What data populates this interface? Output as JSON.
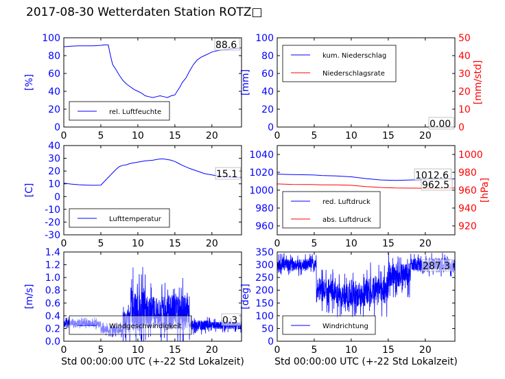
{
  "title": "2017-08-30 Wetterdaten Station ROTZ□",
  "colors": {
    "primary": "#0000ff",
    "secondary": "#ff0000",
    "axis": "#000000"
  },
  "chart_data": [
    {
      "id": "humidity",
      "type": "line",
      "ylabel": "[%]",
      "xlabel": "",
      "xlim": [
        0,
        24
      ],
      "ylim": [
        0,
        100
      ],
      "xticks": [
        0,
        5,
        10,
        15,
        20
      ],
      "yticks": [
        0,
        20,
        40,
        60,
        80,
        100
      ],
      "value_label": "88.6",
      "legend_position": "lower-left",
      "series": [
        {
          "name": "rel. Luftfeuchte",
          "color": "#0000ff",
          "x": [
            0,
            1,
            2,
            3,
            4,
            5,
            5.5,
            6,
            6.3,
            6.6,
            7,
            7.5,
            8,
            8.5,
            9,
            9.5,
            10,
            10.5,
            11,
            11.5,
            12,
            12.5,
            13,
            13.5,
            14,
            14.5,
            15,
            15.3,
            15.7,
            16,
            16.5,
            17,
            17.5,
            18,
            18.5,
            19,
            19.5,
            20,
            21,
            22,
            23,
            24
          ],
          "y": [
            90,
            90.5,
            91,
            91,
            91,
            91.5,
            92,
            92,
            80,
            70,
            65,
            58,
            52,
            48,
            45,
            42,
            40,
            38,
            35,
            34,
            33,
            34,
            35,
            34,
            33,
            35,
            36,
            40,
            45,
            50,
            55,
            63,
            70,
            75,
            78,
            80,
            82,
            84,
            86,
            87,
            88,
            88.6
          ]
        }
      ]
    },
    {
      "id": "precipitation",
      "type": "line",
      "ylabel": "[mm]",
      "ylabel_right": "[mm/std]",
      "xlabel": "",
      "xlim": [
        0,
        24
      ],
      "ylim": [
        0,
        100
      ],
      "ylim_right": [
        0,
        50
      ],
      "xticks": [
        0,
        5,
        10,
        15,
        20
      ],
      "yticks": [
        0,
        20,
        40,
        60,
        80,
        100
      ],
      "yticks_right": [
        0,
        10,
        20,
        30,
        40,
        50
      ],
      "value_label": "0.00",
      "legend_position": "top-left",
      "series": [
        {
          "name": "kum. Niederschlag",
          "color": "#0000ff",
          "axis": "left",
          "x": [
            0,
            24
          ],
          "y": [
            0,
            0
          ]
        },
        {
          "name": "Niederschlagsrate",
          "color": "#ff0000",
          "axis": "right",
          "x": [
            0,
            24
          ],
          "y": [
            0,
            0
          ]
        }
      ]
    },
    {
      "id": "temperature",
      "type": "line",
      "ylabel": "[C]",
      "xlabel": "",
      "xlim": [
        0,
        24
      ],
      "ylim": [
        -30,
        40
      ],
      "xticks": [
        0,
        5,
        10,
        15,
        20
      ],
      "yticks": [
        -30,
        -20,
        -10,
        0,
        10,
        20,
        30,
        40
      ],
      "value_label": "15.1",
      "legend_position": "lower-left",
      "series": [
        {
          "name": "Lufttemperatur",
          "color": "#0000ff",
          "x": [
            0,
            1,
            2,
            3,
            4,
            5,
            5.5,
            6,
            6.5,
            7,
            7.5,
            8,
            8.5,
            9,
            10,
            11,
            12,
            12.5,
            13,
            13.5,
            14,
            14.5,
            15,
            15.5,
            16,
            17,
            18,
            19,
            20,
            21,
            22,
            23,
            24
          ],
          "y": [
            10.5,
            9.8,
            9.3,
            9,
            8.8,
            9,
            12,
            15,
            18,
            21,
            23.5,
            24.5,
            25,
            26,
            27,
            28,
            28.5,
            29,
            29.5,
            29.5,
            29,
            28.5,
            27.5,
            26,
            24.5,
            22,
            20,
            18,
            17,
            16,
            15.5,
            15.2,
            15.1
          ]
        }
      ]
    },
    {
      "id": "pressure",
      "type": "line",
      "ylabel": "",
      "ylabel_right": "[hPa]",
      "xlabel": "",
      "xlim": [
        0,
        24
      ],
      "ylim": [
        950,
        1050
      ],
      "ylim_right": [
        910,
        1010
      ],
      "xticks": [
        0,
        5,
        10,
        15,
        20
      ],
      "yticks": [
        960,
        980,
        1000,
        1020,
        1040
      ],
      "yticks_right": [
        920,
        940,
        960,
        980,
        1000
      ],
      "value_labels": [
        "1012.6",
        "962.5"
      ],
      "legend_position": "lower-left",
      "series": [
        {
          "name": "red. Luftdruck",
          "color": "#0000ff",
          "axis": "left",
          "x": [
            0,
            2,
            4,
            5,
            6,
            8,
            10,
            12,
            14,
            16,
            18,
            20,
            22,
            24
          ],
          "y": [
            1018,
            1017.5,
            1017.2,
            1017,
            1016.5,
            1016,
            1015,
            1013,
            1011.5,
            1011,
            1011.5,
            1012,
            1012.5,
            1012.6
          ]
        },
        {
          "name": "abs. Luftdruck",
          "color": "#ff0000",
          "axis": "right",
          "x": [
            0,
            2,
            4,
            5,
            6,
            8,
            10,
            12,
            14,
            16,
            18,
            20,
            22,
            24
          ],
          "y": [
            967,
            966.5,
            966.3,
            966.2,
            966,
            966,
            965.5,
            964,
            963,
            962.5,
            962.3,
            962.2,
            962.4,
            962.5
          ]
        }
      ]
    },
    {
      "id": "windspeed",
      "type": "line",
      "ylabel": "[m/s]",
      "xlabel": "Std 00:00:00 UTC (+-22 Std Lokalzeit)",
      "xlim": [
        0,
        24
      ],
      "ylim": [
        0,
        1.4
      ],
      "xticks": [
        0,
        5,
        10,
        15,
        20
      ],
      "yticks": [
        0.0,
        0.2,
        0.4,
        0.6,
        0.8,
        1.0,
        1.2,
        1.4
      ],
      "value_label": "0.3",
      "legend_position": "lower-left",
      "series": [
        {
          "name": "Windgeschwindigkeit",
          "color": "#0000ff",
          "segments": [
            {
              "x0": 0,
              "x1": 5,
              "base": 0.28,
              "spread": 0.1
            },
            {
              "x0": 5,
              "x1": 8,
              "base": 0.18,
              "spread": 0.12
            },
            {
              "x0": 8,
              "x1": 9,
              "base": 0.3,
              "spread": 0.35
            },
            {
              "x0": 9,
              "x1": 11,
              "base": 0.5,
              "spread": 0.7
            },
            {
              "x0": 11,
              "x1": 14,
              "base": 0.45,
              "spread": 0.5
            },
            {
              "x0": 14,
              "x1": 17,
              "base": 0.45,
              "spread": 0.55
            },
            {
              "x0": 17,
              "x1": 20,
              "base": 0.25,
              "spread": 0.15
            },
            {
              "x0": 20,
              "x1": 24,
              "base": 0.25,
              "spread": 0.12
            }
          ]
        }
      ]
    },
    {
      "id": "winddirection",
      "type": "line",
      "ylabel": "[deg]",
      "xlabel": "Std 00:00:00 UTC (+-22 Std Lokalzeit)",
      "xlim": [
        0,
        24
      ],
      "ylim": [
        0,
        350
      ],
      "xticks": [
        0,
        5,
        10,
        15,
        20
      ],
      "yticks": [
        0,
        50,
        100,
        150,
        200,
        250,
        300,
        350
      ],
      "value_label": "287.3",
      "legend_position": "lower-left",
      "series": [
        {
          "name": "Windrichtung",
          "color": "#0000ff",
          "segments": [
            {
              "x0": 0,
              "x1": 5.3,
              "base": 300,
              "spread": 45
            },
            {
              "x0": 5.3,
              "x1": 8,
              "base": 200,
              "spread": 90
            },
            {
              "x0": 8,
              "x1": 12,
              "base": 180,
              "spread": 90
            },
            {
              "x0": 12,
              "x1": 15,
              "base": 200,
              "spread": 110
            },
            {
              "x0": 15,
              "x1": 18,
              "base": 260,
              "spread": 90
            },
            {
              "x0": 18,
              "x1": 24,
              "base": 300,
              "spread": 50
            }
          ]
        }
      ]
    }
  ]
}
